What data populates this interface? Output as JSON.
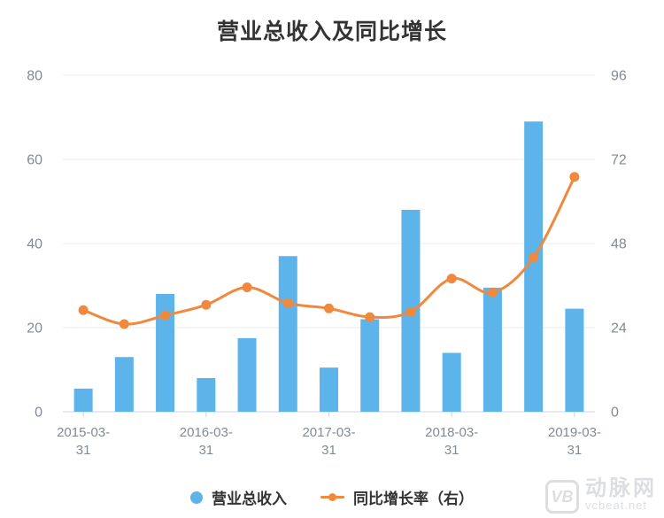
{
  "title": "营业总收入及同比增长",
  "legend": {
    "bar_label": "营业总收入",
    "line_label": "同比增长率（右）"
  },
  "watermark": {
    "logo": "VB",
    "name": "动脉网",
    "domain": "vcbeat.net"
  },
  "colors": {
    "bar": "#5DB4EA",
    "line": "#F0883D",
    "axis_label": "#828A96",
    "grid": "#E9EBEF",
    "axis_line": "#CDD3DB",
    "title": "#333333",
    "legend_text": "#333333",
    "watermark": "#DCDEE2"
  },
  "chart_data": {
    "type": "bar+line combo",
    "title": "营业总收入及同比增长",
    "categories": [
      "2015-03-31",
      "",
      "",
      "2016-03-31",
      "",
      "",
      "2017-03-31",
      "",
      "",
      "2018-03-31",
      "",
      "",
      "2019-03-31"
    ],
    "x_tick_labels": [
      "2015-03-31",
      "2016-03-31",
      "2017-03-31",
      "2018-03-31",
      "2019-03-31"
    ],
    "label_every": 3,
    "series": [
      {
        "name": "营业总收入",
        "type": "bar",
        "axis": "left",
        "values": [
          5.5,
          13,
          28,
          8,
          17.5,
          37,
          10.5,
          22,
          48,
          14,
          29.5,
          69,
          24.5
        ]
      },
      {
        "name": "同比增长率（右）",
        "type": "line",
        "axis": "right",
        "values": [
          29,
          25,
          27.5,
          30.5,
          35.5,
          31,
          29.5,
          27,
          28.5,
          38,
          34,
          44,
          67
        ]
      }
    ],
    "left_axis": {
      "range": [
        0,
        80
      ],
      "ticks": [
        0,
        20,
        40,
        60,
        80
      ]
    },
    "right_axis": {
      "range": [
        0,
        96
      ],
      "ticks": [
        0,
        24,
        48,
        72,
        96
      ]
    },
    "grid": "horizontal gridlines on",
    "legend_position": "bottom",
    "smooth_line": true
  }
}
